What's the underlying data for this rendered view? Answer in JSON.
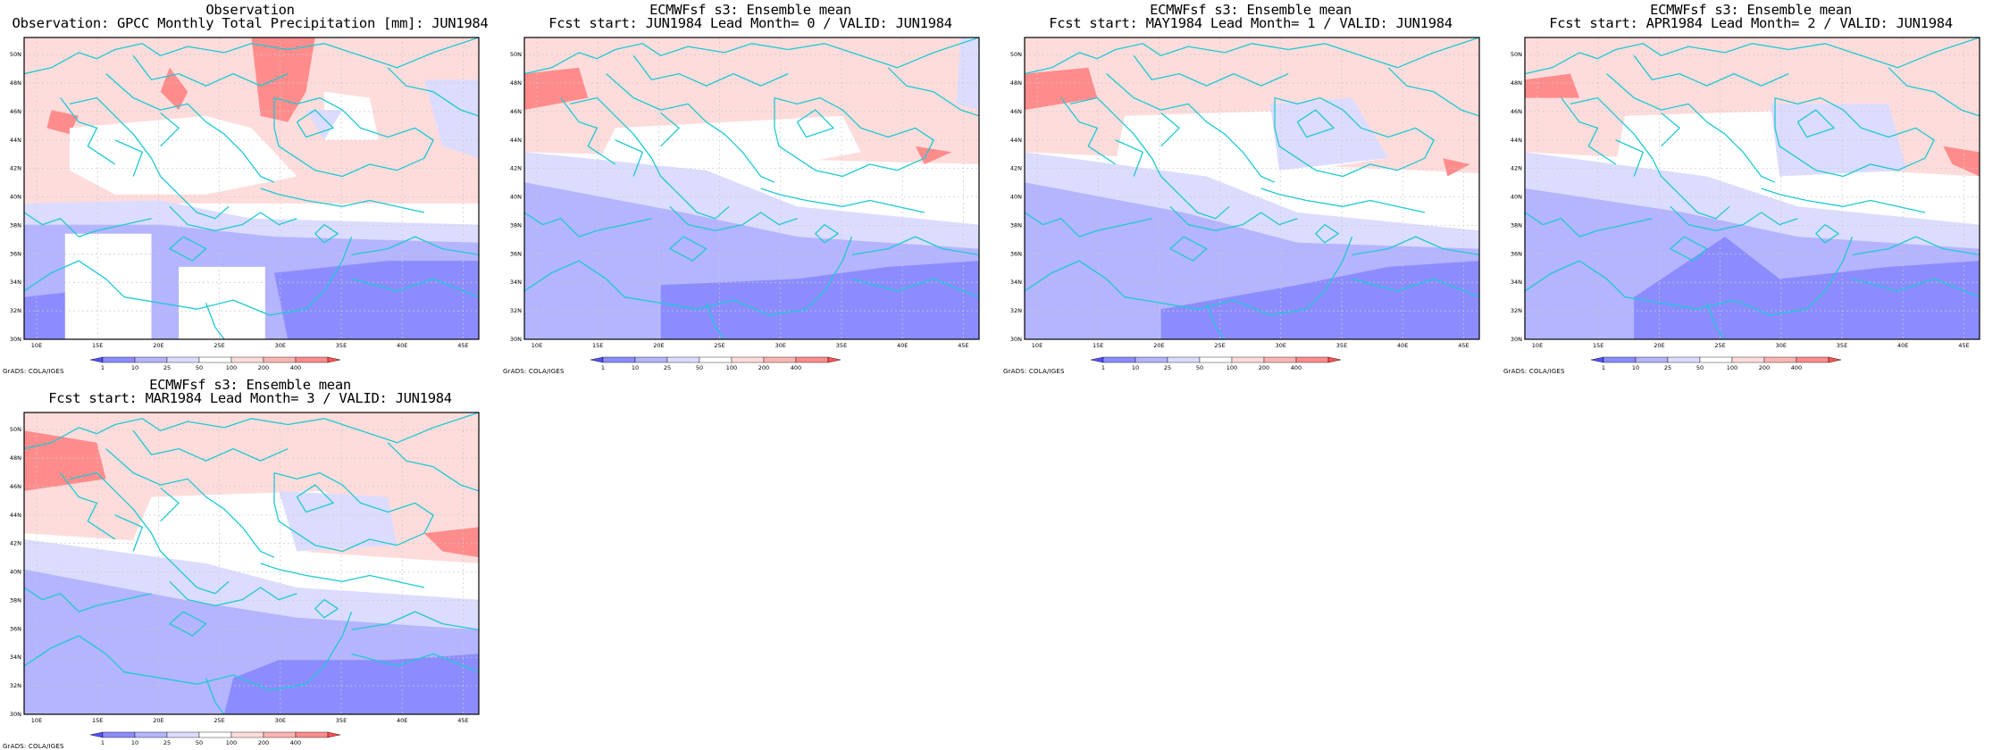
{
  "panels": [
    {
      "title1": "Observation",
      "title2": "Observation: GPCC Monthly Total Precipitation [mm]: JUN1984"
    },
    {
      "title1": "ECMWFsf s3: Ensemble mean",
      "title2": "Fcst start: JUN1984  Lead Month= 0 / VALID: JUN1984"
    },
    {
      "title1": "ECMWFsf s3: Ensemble mean",
      "title2": "Fcst start: MAY1984  Lead Month= 1 / VALID: JUN1984"
    },
    {
      "title1": "ECMWFsf s3: Ensemble mean",
      "title2": "Fcst start: APR1984  Lead Month= 2 / VALID: JUN1984"
    },
    {
      "title1": "ECMWFsf s3: Ensemble mean",
      "title2": "Fcst start: MAR1984  Lead Month= 3 / VALID: JUN1984"
    }
  ],
  "lat_labels": [
    "30N",
    "32N",
    "34N",
    "36N",
    "38N",
    "40N",
    "42N",
    "44N",
    "46N",
    "48N",
    "50N"
  ],
  "lon_labels": [
    "10E",
    "15E",
    "20E",
    "25E",
    "30E",
    "35E",
    "40E",
    "45E"
  ],
  "colorbar_labels": [
    "1",
    "10",
    "25",
    "50",
    "100",
    "200",
    "400"
  ],
  "colorbar_colors": [
    "#5050ff",
    "#8c8cff",
    "#b4b4ff",
    "#dcdcff",
    "#ffffff",
    "#ffdcdc",
    "#ffb4b4",
    "#ff8c8c",
    "#ff5050"
  ],
  "credit": "GrADS: COLA/IGES",
  "colors": {
    "coast": "#1ecad2",
    "frame": "#000000",
    "grid": "#c8c8c8"
  }
}
